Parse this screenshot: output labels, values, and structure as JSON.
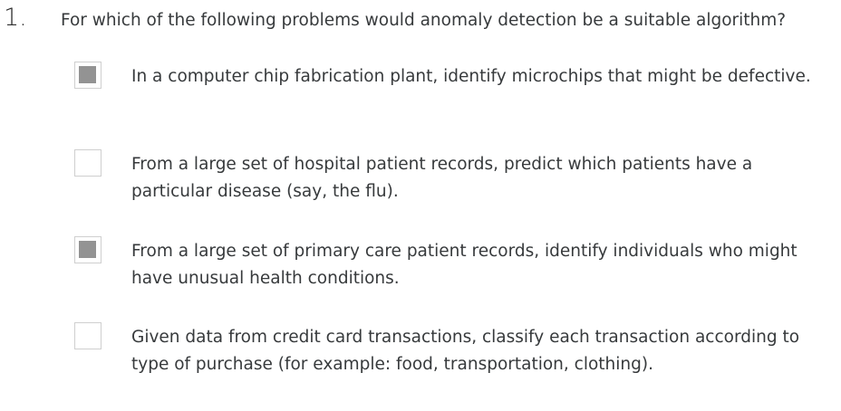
{
  "question": {
    "number": "1.",
    "text": "For which of the following problems would anomaly detection be a suitable algorithm?"
  },
  "options": [
    {
      "checked": true,
      "text": "In a computer chip fabrication plant, identify microchips that might be defective."
    },
    {
      "checked": false,
      "text": "From a large set of hospital patient records, predict which patients have a particular disease (say, the flu)."
    },
    {
      "checked": true,
      "text": "From a large set of primary care patient records, identify individuals who might have unusual health conditions."
    },
    {
      "checked": false,
      "text": "Given data from credit card transactions, classify each transaction according to type of purchase (for example: food, transportation, clothing)."
    }
  ],
  "colors": {
    "checkbox_fill": "#939393",
    "checkbox_border": "#cfcfcf",
    "text": "#373a3c"
  }
}
